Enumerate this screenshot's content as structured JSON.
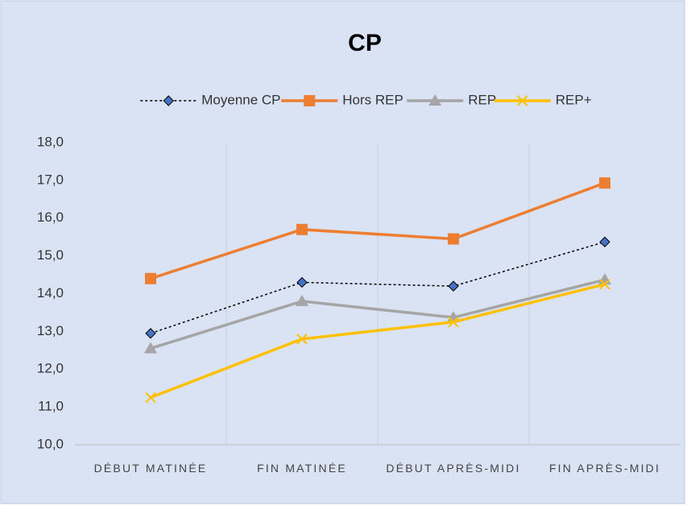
{
  "chart_data": {
    "type": "line",
    "title": "CP",
    "categories": [
      "DÉBUT MATINÉE",
      "FIN MATINÉE",
      "DÉBUT APRÈS-MIDI",
      "FIN APRÈS-MIDI"
    ],
    "series": [
      {
        "name": "Moyenne CP",
        "color": "#000000",
        "marker": "diamond",
        "marker_color": "#4472c4",
        "dash": "dotted",
        "values": [
          12.95,
          14.3,
          14.2,
          15.37
        ]
      },
      {
        "name": "Hors REP",
        "color": "#ed7d31",
        "marker": "square",
        "marker_color": "#ed7d31",
        "dash": "solid",
        "values": [
          14.4,
          15.7,
          15.45,
          16.93
        ]
      },
      {
        "name": "REP",
        "color": "#a5a5a5",
        "marker": "triangle",
        "marker_color": "#a5a5a5",
        "dash": "solid",
        "values": [
          12.55,
          13.8,
          13.37,
          14.37
        ]
      },
      {
        "name": "REP+",
        "color": "#ffc000",
        "marker": "x",
        "marker_color": "#ffc000",
        "dash": "solid",
        "values": [
          11.25,
          12.8,
          13.25,
          14.25
        ]
      }
    ],
    "ylim": [
      10,
      18
    ],
    "yticks": [
      {
        "value": 10,
        "label": "10,0"
      },
      {
        "value": 11,
        "label": "11,0"
      },
      {
        "value": 12,
        "label": "12,0"
      },
      {
        "value": 13,
        "label": "13,0"
      },
      {
        "value": 14,
        "label": "14,0"
      },
      {
        "value": 15,
        "label": "15,0"
      },
      {
        "value": 16,
        "label": "16,0"
      },
      {
        "value": 17,
        "label": "17,0"
      },
      {
        "value": 18,
        "label": "18,0"
      }
    ],
    "legend": "top"
  }
}
